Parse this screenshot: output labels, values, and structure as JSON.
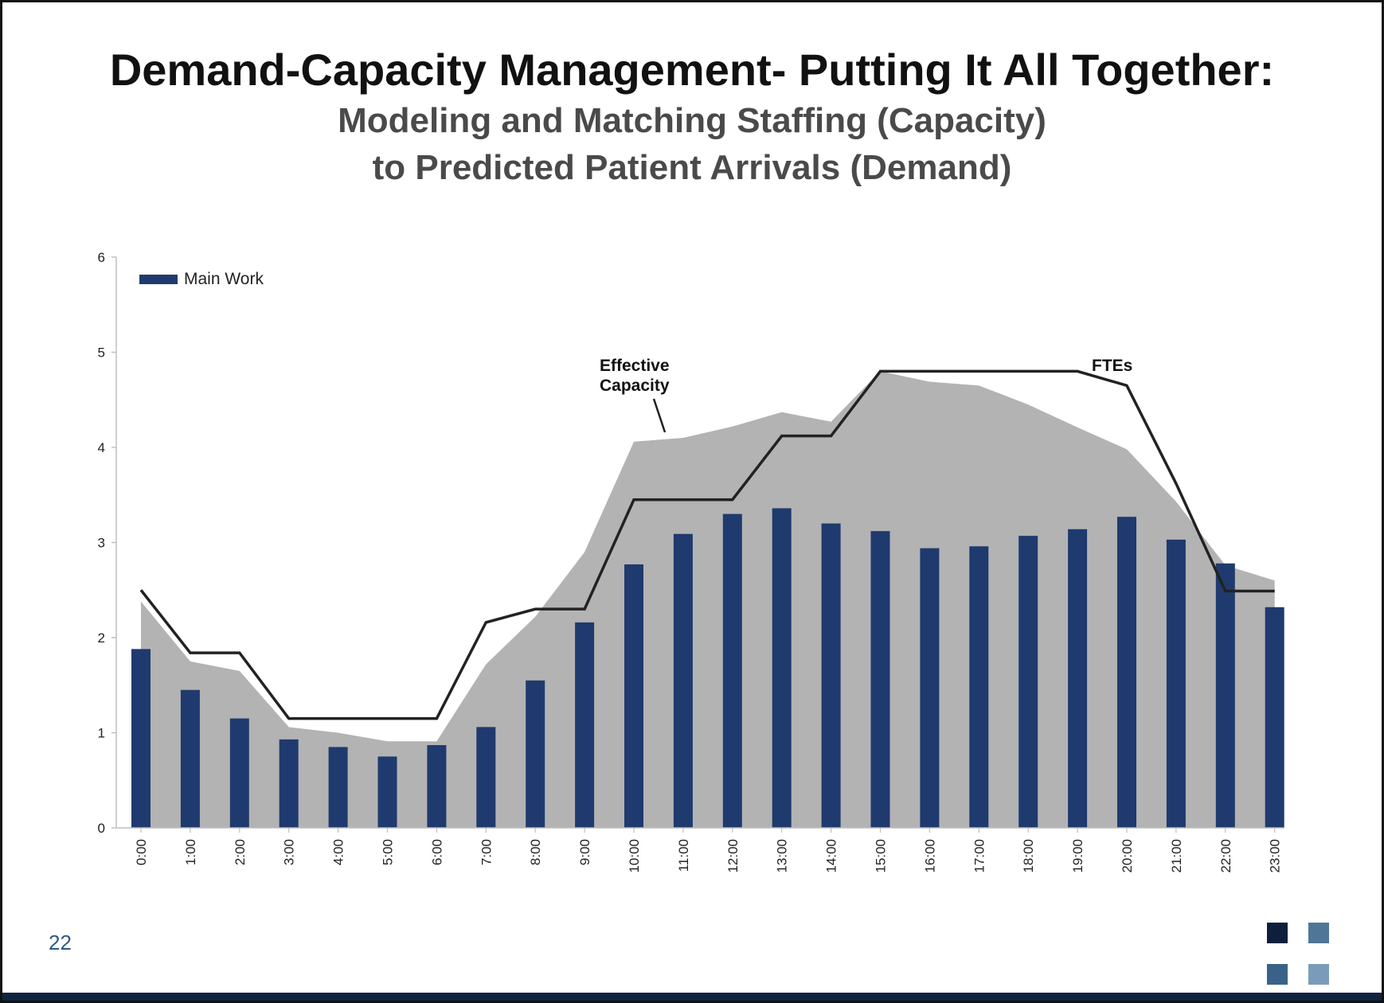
{
  "slide": {
    "title": "Demand-Capacity Management- Putting It All Together:",
    "subtitle_line1": "Modeling and Matching Staffing (Capacity)",
    "subtitle_line2": "to Predicted Patient Arrivals  (Demand)",
    "page_number": "22"
  },
  "colors": {
    "bar": "#1f3a6e",
    "area": "#b3b3b3",
    "line": "#222222",
    "logo": [
      "#0e1f3c",
      "#4f7697",
      "#3a6288",
      "#7b9cb8"
    ]
  },
  "chart_data": {
    "type": "bar",
    "categories": [
      "0:00",
      "1:00",
      "2:00",
      "3:00",
      "4:00",
      "5:00",
      "6:00",
      "7:00",
      "8:00",
      "9:00",
      "10:00",
      "11:00",
      "12:00",
      "13:00",
      "14:00",
      "15:00",
      "16:00",
      "17:00",
      "18:00",
      "19:00",
      "20:00",
      "21:00",
      "22:00",
      "23:00"
    ],
    "ylim": [
      0,
      6
    ],
    "yticks": [
      "0",
      "1",
      "2",
      "3",
      "4",
      "5",
      "6"
    ],
    "legend": {
      "label": "Main Work",
      "position": "top-left"
    },
    "series": [
      {
        "name": "Main Work",
        "kind": "bar",
        "values": [
          1.88,
          1.45,
          1.15,
          0.93,
          0.85,
          0.75,
          0.87,
          1.06,
          1.55,
          2.16,
          2.77,
          3.09,
          3.3,
          3.36,
          3.2,
          3.12,
          2.94,
          2.96,
          3.07,
          3.14,
          3.27,
          3.03,
          2.78,
          2.32
        ]
      },
      {
        "name": "Effective Capacity",
        "kind": "area",
        "values": [
          2.38,
          1.75,
          1.65,
          1.06,
          1.0,
          0.91,
          0.91,
          1.72,
          2.22,
          2.9,
          4.06,
          4.1,
          4.22,
          4.37,
          4.27,
          4.8,
          4.69,
          4.65,
          4.45,
          4.21,
          3.98,
          3.43,
          2.76,
          2.6
        ]
      },
      {
        "name": "FTEs",
        "kind": "line",
        "values": [
          2.5,
          1.84,
          1.84,
          1.15,
          1.15,
          1.15,
          1.15,
          2.16,
          2.3,
          2.3,
          3.45,
          3.45,
          3.45,
          4.12,
          4.12,
          4.8,
          4.8,
          4.8,
          4.8,
          4.8,
          4.65,
          3.62,
          2.49,
          2.49
        ]
      }
    ],
    "annotations": [
      {
        "lines": [
          "Effective",
          "Capacity"
        ]
      },
      {
        "lines": [
          "FTEs"
        ]
      }
    ]
  }
}
